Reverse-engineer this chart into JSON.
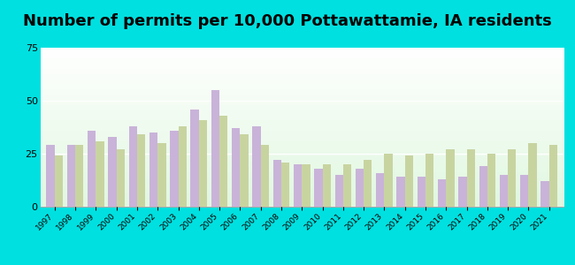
{
  "title": "Number of permits per 10,000 Pottawattamie, IA residents",
  "years": [
    1997,
    1998,
    1999,
    2000,
    2001,
    2002,
    2003,
    2004,
    2005,
    2006,
    2007,
    2008,
    2009,
    2010,
    2011,
    2012,
    2013,
    2014,
    2015,
    2016,
    2017,
    2018,
    2019,
    2020,
    2021
  ],
  "pottawattamie": [
    29,
    29,
    36,
    33,
    38,
    35,
    36,
    46,
    55,
    37,
    38,
    22,
    20,
    18,
    15,
    18,
    16,
    14,
    14,
    13,
    14,
    19,
    15,
    15,
    12
  ],
  "iowa_avg": [
    24,
    29,
    31,
    27,
    34,
    30,
    38,
    41,
    43,
    34,
    29,
    21,
    20,
    20,
    20,
    22,
    25,
    24,
    25,
    27,
    27,
    25,
    27,
    30,
    29
  ],
  "pott_color": "#c9b3d9",
  "iowa_color": "#c8d4a0",
  "outer_bg": "#00e0e0",
  "ylim": [
    0,
    75
  ],
  "yticks": [
    0,
    25,
    50,
    75
  ],
  "title_fontsize": 13
}
